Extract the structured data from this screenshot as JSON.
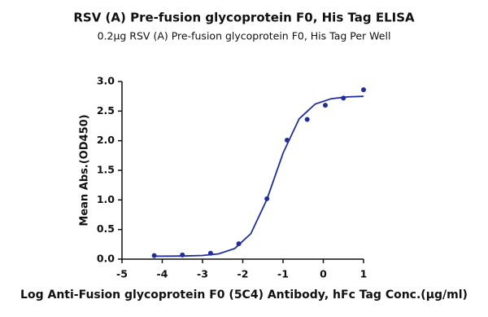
{
  "chart_data": {
    "type": "scatter",
    "title": "RSV (A) Pre-fusion glycoprotein F0, His Tag ELISA",
    "subtitle": "0.2μg RSV (A) Pre-fusion glycoprotein F0, His Tag Per Well",
    "x_label": "Log Anti-Fusion glycoprotein F0 (5C4) Antibody, hFc Tag Conc.(μg/ml)",
    "y_label": "Mean Abs.(OD450)",
    "color": "#1f2e9a",
    "xlim": [
      -5,
      1
    ],
    "xticks": [
      -5,
      -4,
      -3,
      -2,
      -1,
      0,
      1
    ],
    "ylim": [
      0,
      3
    ],
    "yticks": [
      {
        "value": 0,
        "label": "0.0"
      },
      {
        "value": 0.5,
        "label": "0.5"
      },
      {
        "value": 1,
        "label": "1.0"
      },
      {
        "value": 1.5,
        "label": "1.5"
      },
      {
        "value": 2,
        "label": "2.0"
      },
      {
        "value": 2.5,
        "label": "2.5"
      },
      {
        "value": 3,
        "label": "3.0"
      }
    ],
    "points": {
      "x": [
        -4.2,
        -3.5,
        -2.8,
        -2.1,
        -1.4,
        -0.9,
        -0.4,
        0.05,
        0.5,
        1.0
      ],
      "values": [
        0.06,
        0.07,
        0.1,
        0.26,
        1.02,
        2.01,
        2.36,
        2.6,
        2.72,
        2.86
      ]
    },
    "fit": {
      "x": [
        -4.2,
        -3.8,
        -3.4,
        -3.0,
        -2.6,
        -2.2,
        -1.8,
        -1.4,
        -1.0,
        -0.6,
        -0.2,
        0.2,
        0.6,
        1.0
      ],
      "values": [
        0.05,
        0.051,
        0.054,
        0.062,
        0.09,
        0.18,
        0.43,
        1.01,
        1.79,
        2.37,
        2.62,
        2.71,
        2.74,
        2.75
      ]
    }
  }
}
